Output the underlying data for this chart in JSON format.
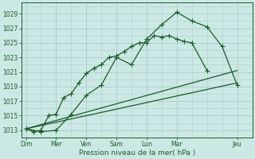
{
  "bg_color": "#cce8e4",
  "grid_color": "#aacccc",
  "line_color": "#1a5c2a",
  "xlabel": "Pression niveau de la mer( hPa )",
  "ylim": [
    1012.0,
    1030.5
  ],
  "yticks": [
    1013,
    1015,
    1017,
    1019,
    1021,
    1023,
    1025,
    1027,
    1029
  ],
  "x_day_labels": [
    "Dim",
    "Mer",
    "Ven",
    "Sam",
    "Lun",
    "Mar",
    "Jeu"
  ],
  "x_day_positions": [
    0,
    2,
    4,
    6,
    8,
    10,
    14
  ],
  "xlim": [
    -0.3,
    15.0
  ],
  "series1_x": [
    0,
    0.5,
    1,
    1.5,
    2,
    2.5,
    3,
    3.5,
    4,
    4.5,
    5,
    5.5,
    6,
    6.5,
    7,
    7.5,
    8,
    8.5,
    9,
    9.5,
    10,
    10.5,
    11,
    12
  ],
  "series1_y": [
    1013.2,
    1012.8,
    1013.0,
    1015.0,
    1015.2,
    1017.5,
    1018.0,
    1019.5,
    1020.8,
    1021.5,
    1022.0,
    1023.0,
    1023.2,
    1023.8,
    1024.5,
    1025.0,
    1025.0,
    1026.0,
    1025.8,
    1026.0,
    1025.5,
    1025.2,
    1025.0,
    1021.2
  ],
  "series2_x": [
    0,
    1,
    2,
    3,
    4,
    5,
    6,
    7,
    8,
    9,
    10,
    11,
    12,
    13,
    14
  ],
  "series2_y": [
    1013.2,
    1012.8,
    1013.0,
    1015.2,
    1017.8,
    1019.2,
    1023.0,
    1022.0,
    1025.5,
    1027.5,
    1029.2,
    1028.0,
    1027.2,
    1024.5,
    1019.2
  ],
  "series3_x": [
    0,
    14
  ],
  "series3_y": [
    1013.2,
    1019.5
  ],
  "series4_x": [
    0,
    14
  ],
  "series4_y": [
    1013.2,
    1021.2
  ],
  "marker_size": 2.5,
  "line_width": 0.9
}
